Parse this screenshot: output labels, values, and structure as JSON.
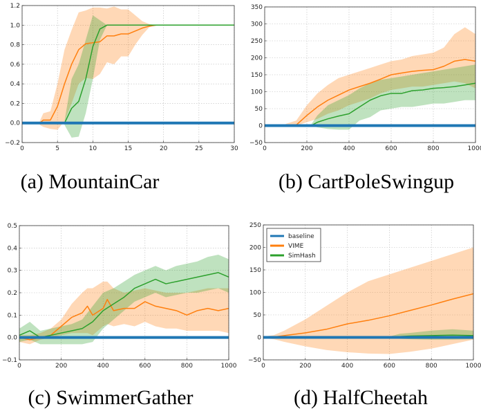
{
  "colors": {
    "baseline": "#1f77b4",
    "VIME": "#ff7f0e",
    "SimHash": "#2ca02c"
  },
  "legend": {
    "placement": "top-left",
    "panel": 3,
    "entries": [
      "baseline",
      "VIME",
      "SimHash"
    ]
  },
  "chart_data": [
    {
      "type": "line",
      "title": "(a) MountainCar",
      "grid": true,
      "xlim": [
        0,
        30
      ],
      "ylim": [
        -0.2,
        1.2
      ],
      "xticks": [
        0,
        5,
        10,
        15,
        20,
        25,
        30
      ],
      "xtick_labels": [
        "0",
        "5",
        "10",
        "15",
        "20",
        "25",
        "30"
      ],
      "yticks": [
        -0.2,
        0,
        0.2,
        0.4,
        0.6,
        0.8,
        1.0,
        1.2
      ],
      "ytick_labels": [
        "−0.2",
        "0.0",
        "0.2",
        "0.4",
        "0.6",
        "0.8",
        "1.0",
        "1.2"
      ],
      "series": [
        {
          "name": "baseline",
          "x": [
            0,
            30
          ],
          "y": [
            0,
            0
          ]
        },
        {
          "name": "VIME",
          "x": [
            2.5,
            3,
            4,
            5,
            6,
            7,
            8,
            9,
            10,
            11,
            12,
            13,
            14,
            15,
            16,
            17,
            18,
            19,
            30
          ],
          "y": [
            0,
            0.03,
            0.03,
            0.17,
            0.4,
            0.6,
            0.75,
            0.81,
            0.82,
            0.83,
            0.89,
            0.89,
            0.91,
            0.91,
            0.94,
            0.97,
            0.99,
            1.0,
            1.0
          ],
          "upper": [
            0.02,
            0.1,
            0.12,
            0.4,
            0.75,
            0.95,
            1.13,
            1.15,
            1.18,
            1.18,
            1.17,
            1.19,
            1.16,
            1.16,
            1.1,
            1.04,
            1.01,
            1.0,
            1.0
          ],
          "lower": [
            -0.02,
            -0.04,
            -0.06,
            -0.07,
            0.02,
            0.2,
            0.4,
            0.46,
            0.45,
            0.5,
            0.62,
            0.6,
            0.68,
            0.68,
            0.8,
            0.9,
            0.98,
            1.0,
            1.0
          ]
        },
        {
          "name": "SimHash",
          "x": [
            6,
            7,
            8,
            9,
            10,
            11,
            12,
            30
          ],
          "y": [
            0,
            0.15,
            0.22,
            0.45,
            0.78,
            0.96,
            1.0,
            1.0
          ],
          "upper": [
            0.02,
            0.45,
            0.6,
            0.85,
            1.1,
            1.05,
            1.0,
            1.0
          ],
          "lower": [
            -0.02,
            -0.15,
            -0.14,
            0.1,
            0.45,
            0.85,
            1.0,
            1.0
          ]
        }
      ]
    },
    {
      "type": "line",
      "title": "(b) CartPoleSwingup",
      "grid": true,
      "xlim": [
        0,
        1000
      ],
      "ylim": [
        -50,
        350
      ],
      "xticks": [
        0,
        200,
        400,
        600,
        800,
        1000
      ],
      "xtick_labels": [
        "0",
        "200",
        "400",
        "600",
        "800",
        "1000"
      ],
      "yticks": [
        -50,
        0,
        50,
        100,
        150,
        200,
        250,
        300,
        350
      ],
      "ytick_labels": [
        "−50",
        "0",
        "50",
        "100",
        "150",
        "200",
        "250",
        "300",
        "350"
      ],
      "series": [
        {
          "name": "baseline",
          "x": [
            0,
            1000
          ],
          "y": [
            0,
            0
          ]
        },
        {
          "name": "VIME",
          "x": [
            100,
            150,
            200,
            250,
            300,
            350,
            400,
            450,
            500,
            550,
            600,
            650,
            700,
            750,
            800,
            850,
            900,
            950,
            1000
          ],
          "y": [
            0,
            2,
            30,
            55,
            75,
            90,
            105,
            115,
            125,
            137,
            150,
            155,
            160,
            163,
            165,
            175,
            190,
            195,
            190
          ],
          "upper": [
            5,
            15,
            60,
            95,
            120,
            140,
            150,
            160,
            170,
            180,
            190,
            195,
            205,
            210,
            215,
            230,
            270,
            290,
            270
          ],
          "lower": [
            0,
            0,
            10,
            20,
            35,
            45,
            60,
            70,
            80,
            95,
            105,
            110,
            115,
            115,
            120,
            125,
            130,
            125,
            110
          ]
        },
        {
          "name": "SimHash",
          "x": [
            220,
            250,
            300,
            350,
            400,
            450,
            500,
            550,
            600,
            650,
            700,
            750,
            800,
            850,
            900,
            950,
            1000
          ],
          "y": [
            0,
            10,
            20,
            28,
            35,
            55,
            75,
            88,
            95,
            95,
            103,
            105,
            110,
            112,
            115,
            120,
            125
          ],
          "upper": [
            3,
            30,
            60,
            75,
            90,
            110,
            125,
            135,
            140,
            145,
            150,
            155,
            160,
            165,
            170,
            175,
            180
          ],
          "lower": [
            0,
            -5,
            -10,
            -12,
            -12,
            15,
            25,
            45,
            50,
            55,
            55,
            60,
            65,
            65,
            70,
            75,
            75
          ]
        }
      ]
    },
    {
      "type": "line",
      "title": "(c) SwimmerGather",
      "grid": true,
      "xlim": [
        0,
        1000
      ],
      "ylim": [
        -0.1,
        0.5
      ],
      "xticks": [
        0,
        200,
        400,
        600,
        800,
        1000
      ],
      "xtick_labels": [
        "0",
        "200",
        "400",
        "600",
        "800",
        "1000"
      ],
      "yticks": [
        -0.1,
        0,
        0.1,
        0.2,
        0.3,
        0.4,
        0.5
      ],
      "ytick_labels": [
        "−0.1",
        "0.0",
        "0.1",
        "0.2",
        "0.3",
        "0.4",
        "0.5"
      ],
      "series": [
        {
          "name": "baseline",
          "x": [
            0,
            1000
          ],
          "y": [
            0,
            0
          ]
        },
        {
          "name": "VIME",
          "x": [
            0,
            50,
            100,
            150,
            200,
            250,
            300,
            325,
            350,
            400,
            420,
            450,
            500,
            550,
            600,
            650,
            700,
            750,
            800,
            850,
            900,
            950,
            1000
          ],
          "y": [
            0,
            -0.01,
            0,
            0.01,
            0.05,
            0.09,
            0.11,
            0.14,
            0.1,
            0.13,
            0.17,
            0.12,
            0.13,
            0.13,
            0.16,
            0.14,
            0.13,
            0.12,
            0.1,
            0.12,
            0.13,
            0.12,
            0.13
          ],
          "upper": [
            0.01,
            0.01,
            0.02,
            0.04,
            0.08,
            0.15,
            0.2,
            0.22,
            0.22,
            0.25,
            0.25,
            0.22,
            0.2,
            0.21,
            0.22,
            0.21,
            0.2,
            0.2,
            0.2,
            0.21,
            0.22,
            0.22,
            0.22
          ],
          "lower": [
            -0.02,
            -0.03,
            -0.01,
            0,
            0.01,
            0.02,
            0.02,
            0.02,
            0.01,
            0.05,
            0.06,
            0.05,
            0.06,
            0.05,
            0.07,
            0.05,
            0.04,
            0.04,
            0.03,
            0.03,
            0.03,
            0.03,
            0.02
          ]
        },
        {
          "name": "SimHash",
          "x": [
            0,
            50,
            100,
            150,
            200,
            250,
            300,
            350,
            400,
            450,
            500,
            550,
            600,
            650,
            700,
            750,
            800,
            850,
            900,
            950,
            1000
          ],
          "y": [
            0.01,
            0.03,
            0,
            0.01,
            0.02,
            0.03,
            0.04,
            0.07,
            0.12,
            0.15,
            0.18,
            0.22,
            0.24,
            0.26,
            0.24,
            0.25,
            0.26,
            0.27,
            0.28,
            0.29,
            0.27
          ],
          "upper": [
            0.04,
            0.07,
            0.03,
            0.04,
            0.05,
            0.06,
            0.08,
            0.14,
            0.2,
            0.22,
            0.25,
            0.28,
            0.3,
            0.32,
            0.3,
            0.32,
            0.33,
            0.34,
            0.36,
            0.37,
            0.35
          ],
          "lower": [
            -0.02,
            -0.01,
            -0.03,
            -0.03,
            -0.03,
            -0.03,
            -0.03,
            -0.02,
            0.04,
            0.08,
            0.12,
            0.16,
            0.18,
            0.2,
            0.18,
            0.19,
            0.2,
            0.2,
            0.21,
            0.22,
            0.2
          ]
        }
      ]
    },
    {
      "type": "line",
      "title": "(d) HalfCheetah",
      "grid": true,
      "xlim": [
        0,
        1000
      ],
      "ylim": [
        -50,
        250
      ],
      "xticks": [
        0,
        200,
        400,
        600,
        800,
        1000
      ],
      "xtick_labels": [
        "0",
        "200",
        "400",
        "600",
        "800",
        "1000"
      ],
      "yticks": [
        -50,
        0,
        50,
        100,
        150,
        200,
        250
      ],
      "ytick_labels": [
        "−50",
        "0",
        "50",
        "100",
        "150",
        "200",
        "250"
      ],
      "series": [
        {
          "name": "baseline",
          "x": [
            0,
            1000
          ],
          "y": [
            0,
            0
          ]
        },
        {
          "name": "VIME",
          "x": [
            0,
            50,
            100,
            200,
            300,
            400,
            500,
            600,
            700,
            800,
            900,
            1000
          ],
          "y": [
            0,
            1,
            4,
            10,
            18,
            30,
            38,
            48,
            60,
            72,
            85,
            97
          ],
          "upper": [
            2,
            5,
            15,
            40,
            70,
            100,
            125,
            140,
            155,
            170,
            185,
            200
          ],
          "lower": [
            -2,
            -4,
            -10,
            -20,
            -28,
            -33,
            -36,
            -37,
            -32,
            -25,
            -15,
            -5
          ]
        },
        {
          "name": "SimHash",
          "x": [
            0,
            600,
            650,
            700,
            800,
            900,
            1000
          ],
          "y": [
            0,
            0,
            2,
            3,
            4,
            5,
            4
          ],
          "upper": [
            1,
            2,
            8,
            10,
            15,
            18,
            15
          ],
          "lower": [
            -1,
            -2,
            -3,
            -4,
            -5,
            -5,
            -4
          ]
        }
      ]
    }
  ]
}
